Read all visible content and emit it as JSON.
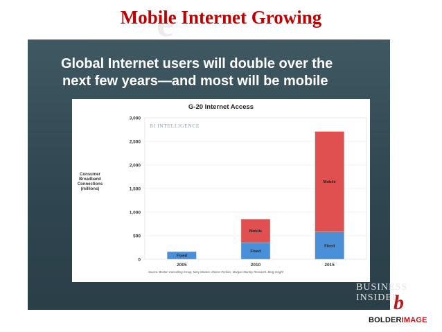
{
  "slide": {
    "title": "Mobile Internet Growing"
  },
  "panel": {
    "headline_line1": "Global Internet users will double over the",
    "headline_line2": "next few years—and most will be mobile"
  },
  "chart_data": {
    "type": "bar",
    "stacked": true,
    "title": "G-20 Internet Access",
    "brand": "BI INTELLIGENCE",
    "ylabel": "Consumer Broadband Connections (millions)",
    "ylim": [
      0,
      3000
    ],
    "yticks": [
      "0",
      "500",
      "1,000",
      "1,500",
      "2,000",
      "2,500",
      "3,000"
    ],
    "ytick_values": [
      0,
      500,
      1000,
      1500,
      2000,
      2500,
      3000
    ],
    "categories": [
      "2005",
      "2010",
      "2015"
    ],
    "series": [
      {
        "name": "Fixed",
        "color": "#4a90d9",
        "values": [
          160,
          350,
          580
        ],
        "labels": [
          "Fixed",
          "Fixed",
          "Fixed"
        ]
      },
      {
        "name": "Mobile",
        "color": "#e05050",
        "values": [
          0,
          500,
          2130
        ],
        "labels": [
          "",
          "Mobile",
          "Mobile"
        ]
      }
    ],
    "source": "Source: Boston Consulting Group, Mary Meeker, Kleiner Perkins, Morgan Stanley Research, Berg Insight",
    "grid": true
  },
  "logos": {
    "business_insider_line1": "BUSINESS",
    "business_insider_line2": "INSIDER",
    "bolder_part1": "BOLDER",
    "bolder_part2": "IMAGE"
  }
}
